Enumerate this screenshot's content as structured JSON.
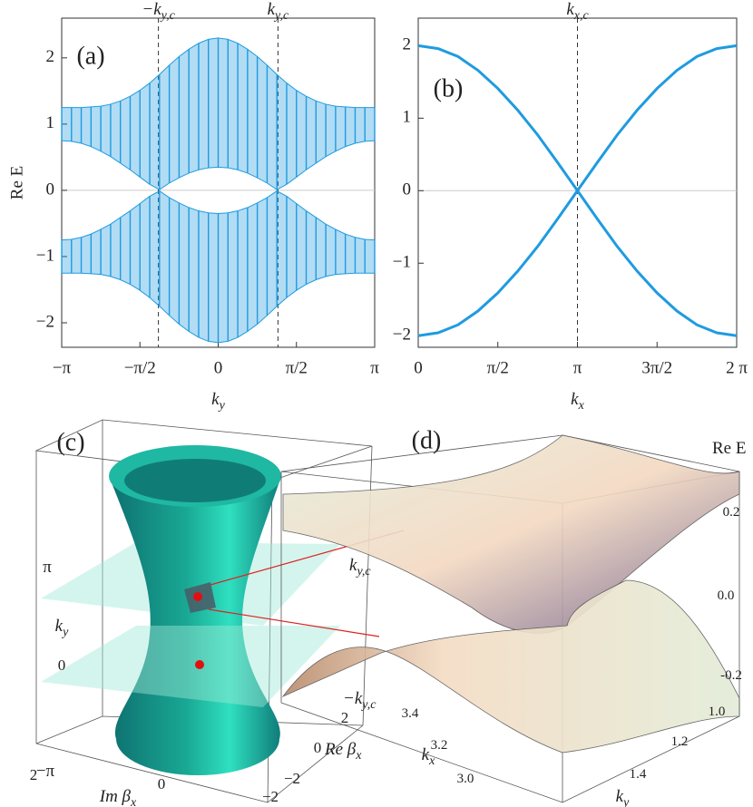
{
  "chart_data": [
    {
      "type": "band",
      "label": "(a)",
      "xlabel": {
        "text": "k",
        "sub": "y"
      },
      "ylabel": "Re E",
      "xlim": [
        -3.1416,
        3.1416
      ],
      "ylim": [
        -2.37,
        2.6
      ],
      "xticks": [
        {
          "value": -3.1416,
          "label": "−π"
        },
        {
          "value": -1.5708,
          "label": "−π/2"
        },
        0,
        {
          "value": 1.5708,
          "label": "π/2"
        },
        {
          "value": 3.1416,
          "label": "π"
        }
      ],
      "yticks": [
        {
          "value": -2,
          "label": "−2"
        },
        {
          "value": -1,
          "label": "−1"
        },
        0,
        1,
        2
      ],
      "x": [
        -3.1416,
        -2.9452,
        -2.7489,
        -2.5525,
        -2.3562,
        -2.1598,
        -1.9635,
        -1.7671,
        -1.5708,
        -1.3744,
        -1.1781,
        -0.9817,
        -0.7854,
        -0.589,
        -0.3927,
        -0.1963,
        0,
        0.1963,
        0.3927,
        0.589,
        0.7854,
        0.9817,
        1.1781,
        1.3744,
        1.5708,
        1.7671,
        1.9635,
        2.1598,
        2.3562,
        2.5525,
        2.7489,
        2.9452,
        3.1416
      ],
      "series": [
        {
          "color": "#1f9be0",
          "values": [
            1.25,
            1.25,
            1.25,
            1.26,
            1.27,
            1.3,
            1.35,
            1.42,
            1.51,
            1.62,
            1.75,
            1.89,
            2.02,
            2.13,
            2.22,
            2.28,
            2.3,
            2.28,
            2.22,
            2.13,
            2.02,
            1.89,
            1.75,
            1.62,
            1.51,
            1.42,
            1.35,
            1.3,
            1.27,
            1.26,
            1.25,
            1.25,
            1.25
          ]
        },
        {
          "color": "#1f9be0",
          "values": [
            0.75,
            0.74,
            0.71,
            0.66,
            0.59,
            0.51,
            0.41,
            0.31,
            0.2,
            0.09,
            0.01,
            0.11,
            0.19,
            0.26,
            0.31,
            0.34,
            0.35,
            0.34,
            0.31,
            0.26,
            0.19,
            0.11,
            0.01,
            0.09,
            0.2,
            0.31,
            0.41,
            0.51,
            0.59,
            0.66,
            0.71,
            0.74,
            0.75
          ]
        },
        {
          "color": "#1f9be0",
          "values": [
            -0.75,
            -0.74,
            -0.71,
            -0.66,
            -0.59,
            -0.51,
            -0.41,
            -0.31,
            -0.2,
            -0.09,
            -0.01,
            -0.11,
            -0.19,
            -0.26,
            -0.31,
            -0.34,
            -0.35,
            -0.34,
            -0.31,
            -0.26,
            -0.19,
            -0.11,
            -0.01,
            -0.09,
            -0.2,
            -0.31,
            -0.41,
            -0.51,
            -0.59,
            -0.66,
            -0.71,
            -0.74,
            -0.75
          ]
        },
        {
          "color": "#1f9be0",
          "values": [
            -1.25,
            -1.25,
            -1.25,
            -1.26,
            -1.27,
            -1.3,
            -1.35,
            -1.42,
            -1.51,
            -1.62,
            -1.75,
            -1.89,
            -2.02,
            -2.13,
            -2.22,
            -2.28,
            -2.3,
            -2.28,
            -2.22,
            -2.13,
            -2.02,
            -1.89,
            -1.75,
            -1.62,
            -1.51,
            -1.42,
            -1.35,
            -1.3,
            -1.27,
            -1.26,
            -1.25,
            -1.25,
            -1.25
          ]
        }
      ],
      "vlines": [
        {
          "x": -1.2,
          "text": "−k",
          "sub": "y,c"
        },
        {
          "x": 1.2,
          "text": "k",
          "sub": "y,c"
        }
      ]
    },
    {
      "type": "line",
      "label": "(b)",
      "xlabel": {
        "text": "k",
        "sub": "x"
      },
      "xlim": [
        0,
        6.2832
      ],
      "ylim": [
        -2.16,
        2.38
      ],
      "xticks": [
        0,
        {
          "value": 1.5708,
          "label": "π/2"
        },
        {
          "value": 3.1416,
          "label": "π"
        },
        {
          "value": 4.7124,
          "label": "3π/2"
        },
        {
          "value": 6.2832,
          "label": "2 π"
        }
      ],
      "yticks": [
        {
          "value": -2,
          "label": "−2"
        },
        {
          "value": -1,
          "label": "−1"
        },
        0,
        1,
        2
      ],
      "x": [
        0,
        0.3927,
        0.7854,
        1.1781,
        1.5708,
        1.9635,
        2.3562,
        2.7489,
        3.1416,
        3.5343,
        3.927,
        4.3197,
        4.7124,
        5.1051,
        5.4978,
        5.8905,
        6.2832
      ],
      "series": [
        {
          "color": "#1f9be0",
          "values": [
            2,
            1.96,
            1.85,
            1.66,
            1.41,
            1.11,
            0.77,
            0.39,
            0,
            -0.39,
            -0.77,
            -1.11,
            -1.41,
            -1.66,
            -1.85,
            -1.96,
            -2
          ]
        },
        {
          "color": "#1f9be0",
          "values": [
            -2,
            -1.96,
            -1.85,
            -1.66,
            -1.41,
            -1.11,
            -0.77,
            -0.39,
            0,
            0.39,
            0.77,
            1.11,
            1.41,
            1.66,
            1.85,
            1.96,
            2
          ]
        }
      ],
      "vlines": [
        {
          "x": 3.1416,
          "text": "k",
          "sub": "x,c"
        }
      ]
    },
    {
      "type": "surface3d",
      "label": "(c)",
      "texts": [
        {
          "text": "π"
        },
        {
          "text": "0"
        },
        {
          "text": "−π"
        },
        {
          "text": "k",
          "sub": "y"
        },
        {
          "text": "k",
          "sub": "y,c"
        },
        {
          "text": "−k",
          "sub": "y,c"
        },
        {
          "text": "2"
        },
        {
          "text": "0"
        },
        {
          "text": "−2"
        },
        {
          "text": "Re β",
          "sub": "x"
        },
        {
          "text": "2"
        },
        {
          "text": "0"
        },
        {
          "text": "−2"
        },
        {
          "text": "Im β",
          "sub": "x"
        }
      ]
    },
    {
      "type": "surface3d",
      "label": "(d)",
      "texts": [
        {
          "text": "Re E"
        },
        {
          "text": "0.2"
        },
        {
          "text": "0.0"
        },
        {
          "text": "-0.2"
        },
        {
          "text": "3.4"
        },
        {
          "text": "3.2"
        },
        {
          "text": "3.0"
        },
        {
          "text": "k",
          "sub": "x"
        },
        {
          "text": "1.0"
        },
        {
          "text": "1.2"
        },
        {
          "text": "1.4"
        },
        {
          "text": "k",
          "sub": "y"
        }
      ]
    }
  ]
}
